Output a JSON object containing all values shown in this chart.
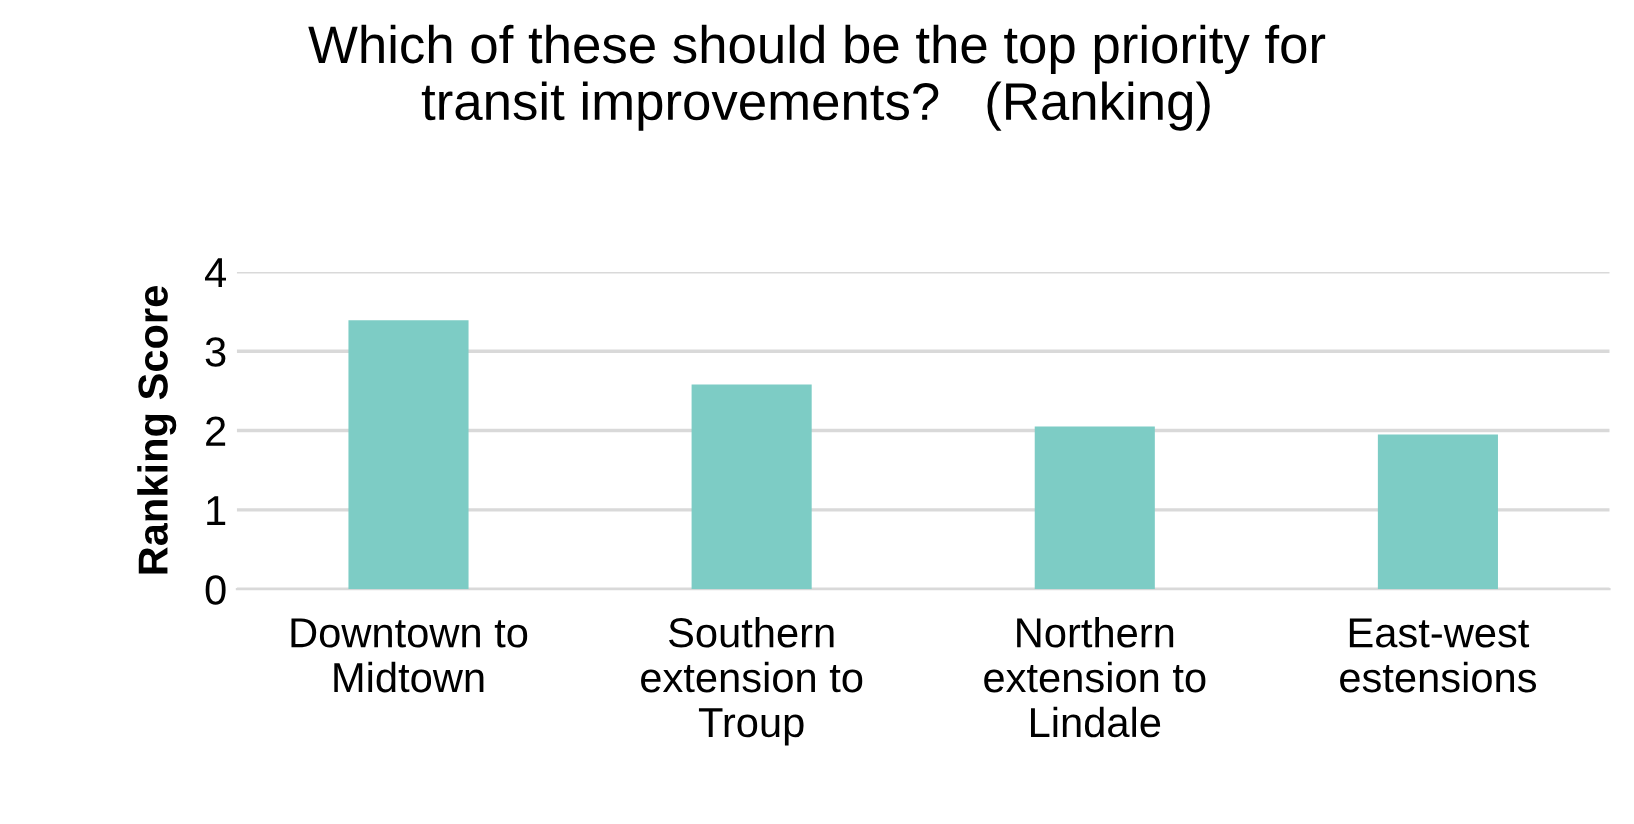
{
  "chart_data": {
    "type": "bar",
    "title": "Which of these should be the top priority for\ntransit improvements?   (Ranking)",
    "ylabel": "Ranking Score",
    "categories": [
      "Downtown to\nMidtown",
      "Southern\nextension to\nTroup",
      "Northern\nextension to\nLindale",
      "East-west\nestensions"
    ],
    "values": [
      3.39,
      2.58,
      2.05,
      1.95
    ],
    "color": "#7dccc5",
    "ylim": [
      0,
      4
    ],
    "yticks": [
      0,
      1,
      2,
      3,
      4
    ],
    "grid": "y"
  }
}
